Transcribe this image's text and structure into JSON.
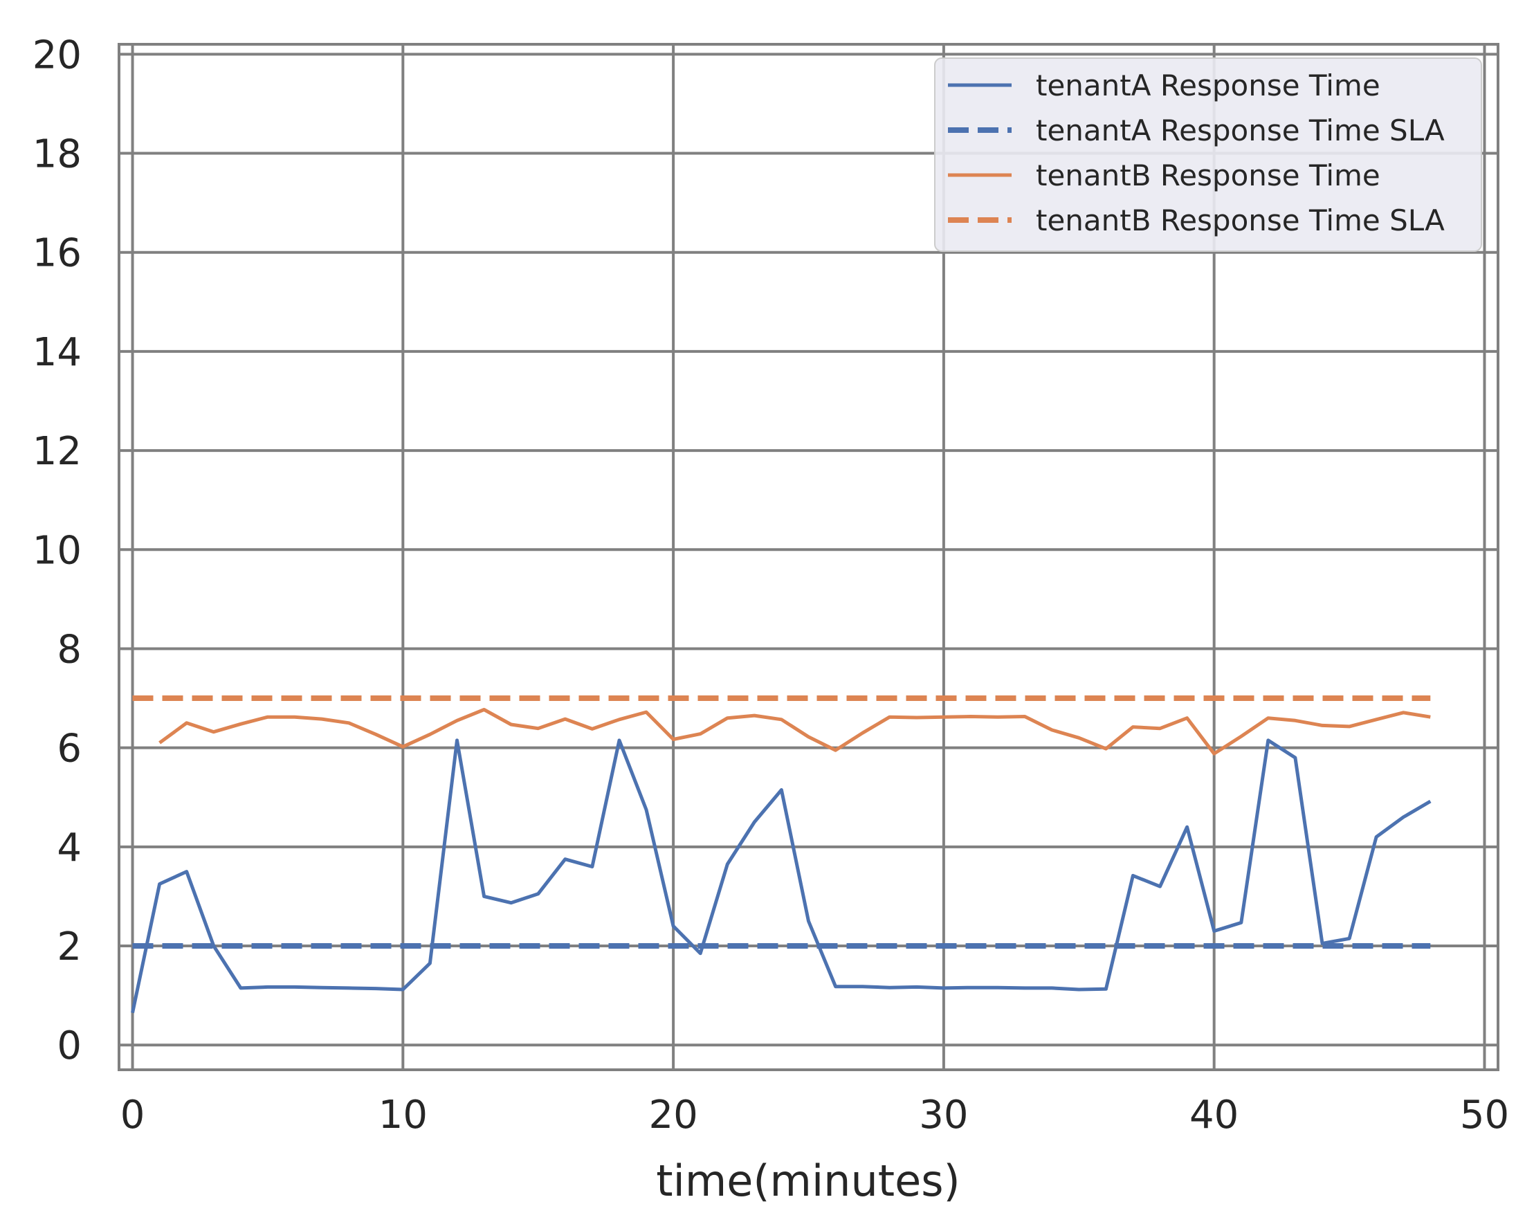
{
  "chart_data": {
    "type": "line",
    "title": "",
    "xlabel": "time(minutes)",
    "ylabel": "",
    "xlim": [
      -0.5,
      50.5
    ],
    "ylim": [
      -0.5,
      20.2
    ],
    "xticks": [
      0,
      10,
      20,
      30,
      40,
      50
    ],
    "yticks": [
      0,
      2,
      4,
      6,
      8,
      10,
      12,
      14,
      16,
      18,
      20
    ],
    "grid": true,
    "legend_position": "top-right",
    "series": [
      {
        "name": "tenantA Response Time",
        "color": "#4c72b0",
        "style": "solid",
        "x": [
          0,
          1,
          2,
          3,
          4,
          5,
          6,
          7,
          8,
          9,
          10,
          11,
          12,
          13,
          14,
          15,
          16,
          17,
          18,
          19,
          20,
          21,
          22,
          23,
          24,
          25,
          26,
          27,
          28,
          29,
          30,
          31,
          32,
          33,
          34,
          35,
          36,
          37,
          38,
          39,
          40,
          41,
          42,
          43,
          44,
          45,
          46,
          47,
          48
        ],
        "y": [
          0.65,
          3.25,
          3.5,
          2.0,
          1.15,
          1.17,
          1.17,
          1.16,
          1.15,
          1.14,
          1.12,
          1.65,
          6.15,
          3.0,
          2.87,
          3.05,
          3.75,
          3.6,
          6.15,
          4.75,
          2.4,
          1.85,
          3.65,
          4.5,
          5.15,
          2.5,
          1.18,
          1.18,
          1.16,
          1.17,
          1.15,
          1.16,
          1.16,
          1.15,
          1.15,
          1.12,
          1.13,
          3.42,
          3.2,
          4.4,
          2.3,
          2.47,
          6.15,
          5.8,
          2.05,
          2.15,
          4.2,
          4.6,
          4.92
        ]
      },
      {
        "name": "tenantA Response Time SLA",
        "color": "#4c72b0",
        "style": "dashed",
        "x": [
          0,
          48
        ],
        "y": [
          2,
          2
        ]
      },
      {
        "name": "tenantB Response Time",
        "color": "#dd8452",
        "style": "solid",
        "x": [
          1,
          2,
          3,
          4,
          5,
          6,
          7,
          8,
          9,
          10,
          11,
          12,
          13,
          14,
          15,
          16,
          17,
          18,
          19,
          20,
          21,
          22,
          23,
          24,
          25,
          26,
          27,
          28,
          29,
          30,
          31,
          32,
          33,
          34,
          35,
          36,
          37,
          38,
          39,
          40,
          41,
          42,
          43,
          44,
          45,
          46,
          47,
          48
        ],
        "y": [
          6.1,
          6.5,
          6.32,
          6.48,
          6.62,
          6.62,
          6.58,
          6.5,
          6.27,
          6.02,
          6.27,
          6.55,
          6.77,
          6.47,
          6.39,
          6.58,
          6.38,
          6.57,
          6.72,
          6.17,
          6.28,
          6.6,
          6.65,
          6.57,
          6.22,
          5.95,
          6.3,
          6.62,
          6.61,
          6.62,
          6.63,
          6.62,
          6.63,
          6.36,
          6.2,
          5.98,
          6.42,
          6.39,
          6.6,
          5.88,
          6.23,
          6.6,
          6.55,
          6.45,
          6.43,
          6.57,
          6.71,
          6.62
        ]
      },
      {
        "name": "tenantB Response Time SLA",
        "color": "#dd8452",
        "style": "dashed",
        "x": [
          0,
          48
        ],
        "y": [
          7,
          7
        ]
      }
    ]
  }
}
